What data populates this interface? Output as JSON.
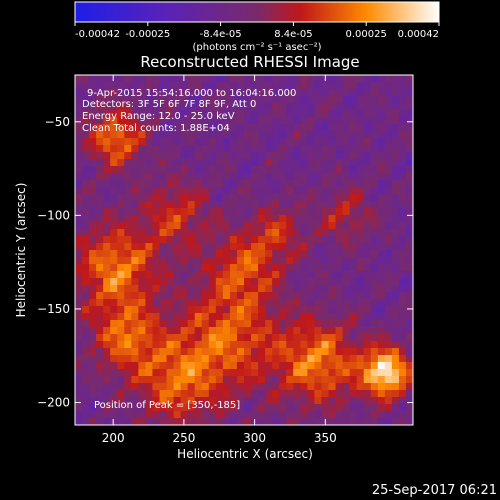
{
  "chart_data": {
    "type": "heatmap",
    "title": "Reconstructed RHESSI Image",
    "xlabel": "Heliocentric X (arcsec)",
    "ylabel": "Heliocentric Y (arcsec)",
    "xlim": [
      173,
      412
    ],
    "ylim": [
      -212,
      -25
    ],
    "xticks": [
      200,
      250,
      300,
      350
    ],
    "yticks": [
      -50,
      -100,
      -150,
      -200
    ],
    "colorbar": {
      "min": -0.00042,
      "max": 0.00042,
      "ticks": [
        "-0.00042",
        "-0.00025",
        "-8.4e-05",
        "8.4e-05",
        "0.00025",
        "0.00042"
      ],
      "unit_label": "(photons cm⁻² s⁻¹ asec⁻²)"
    },
    "annotations": [
      "9-Apr-2015 15:54:16.000 to 16:04:16.000",
      "Detectors: 3F 5F 6F 7F 8F 9F, Att 0",
      "Energy Range: 12.0 - 25.0 keV",
      "Clean    Total counts: 1.88E+04"
    ],
    "peak_label": "Position of Peak = [350,-185]",
    "peak": {
      "x": 350,
      "y": -185
    }
  },
  "footer": {
    "date": "25-Sep-2017 06:21"
  }
}
